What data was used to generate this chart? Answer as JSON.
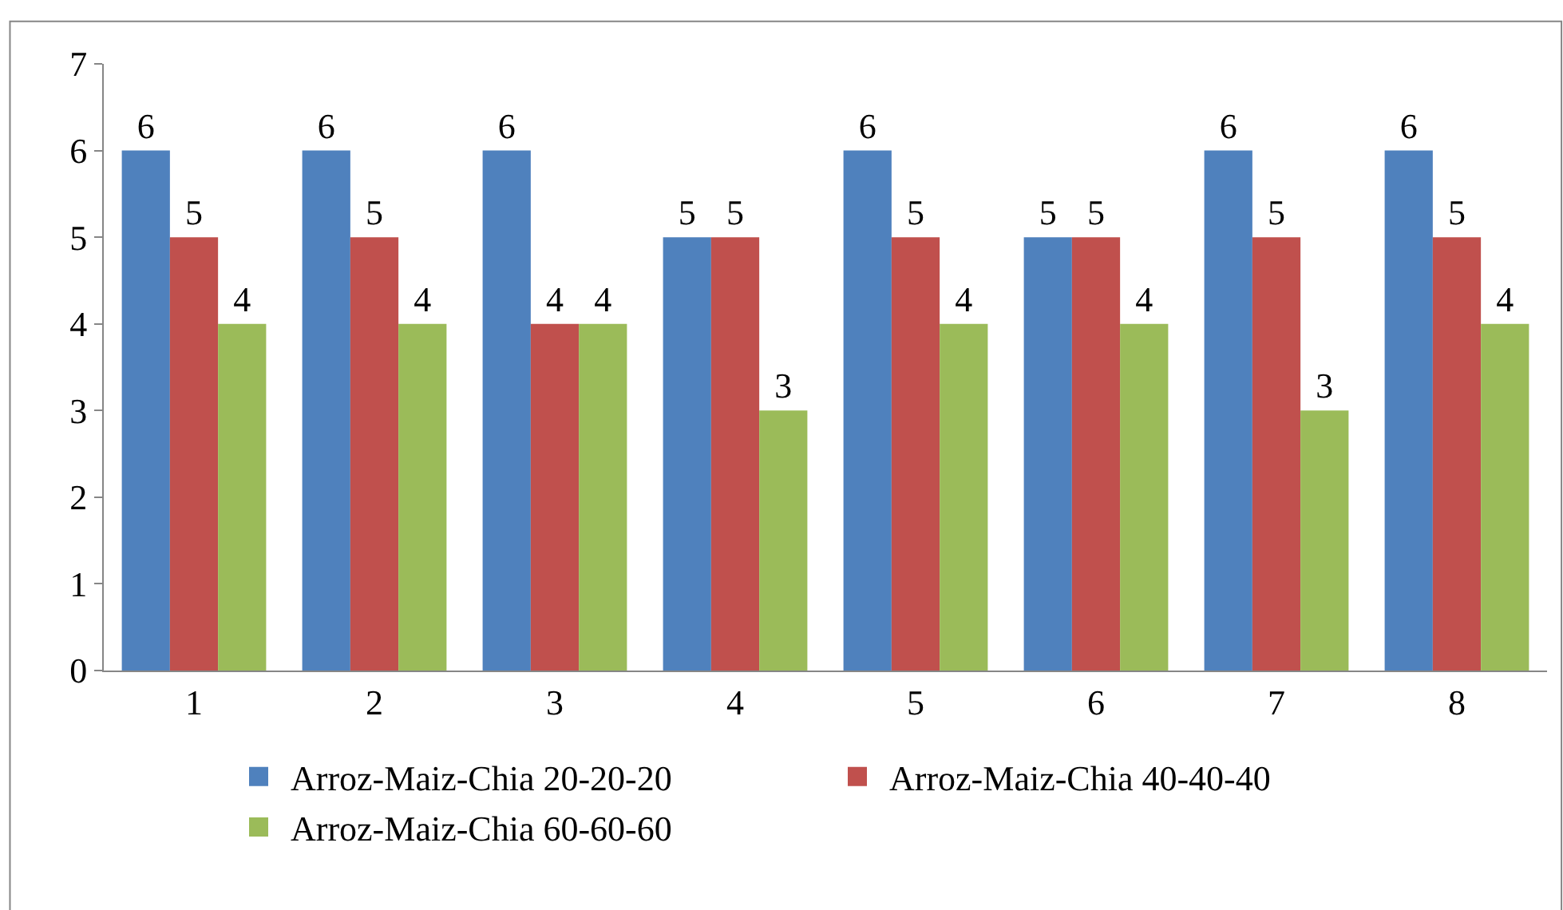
{
  "chart_data": {
    "type": "bar",
    "categories": [
      "1",
      "2",
      "3",
      "4",
      "5",
      "6",
      "7",
      "8"
    ],
    "series": [
      {
        "name": "Arroz-Maiz-Chia 20-20-20",
        "color": "#4f81bd",
        "values": [
          6,
          6,
          6,
          5,
          6,
          5,
          6,
          6
        ]
      },
      {
        "name": "Arroz-Maiz-Chia 40-40-40",
        "color": "#c0504d",
        "values": [
          5,
          5,
          4,
          5,
          5,
          5,
          5,
          5
        ]
      },
      {
        "name": "Arroz-Maiz-Chia 60-60-60",
        "color": "#9bbb59",
        "values": [
          4,
          4,
          4,
          3,
          4,
          4,
          3,
          4
        ]
      }
    ],
    "ylim": [
      0,
      7
    ],
    "yticks": [
      0,
      1,
      2,
      3,
      4,
      5,
      6,
      7
    ],
    "data_labels": true,
    "legend": "bottom"
  }
}
